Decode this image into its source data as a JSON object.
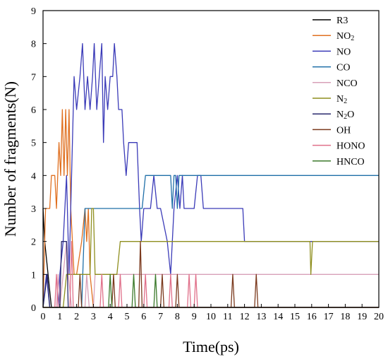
{
  "chart_data": {
    "type": "line",
    "title": "",
    "xlabel": "Time(ps)",
    "ylabel": "Number of fragments(N)",
    "xlim": [
      0,
      20
    ],
    "ylim": [
      0,
      9
    ],
    "x_ticks": [
      0,
      1,
      2,
      3,
      4,
      5,
      6,
      7,
      8,
      9,
      10,
      11,
      12,
      13,
      14,
      15,
      16,
      17,
      18,
      19,
      20
    ],
    "y_ticks": [
      0,
      1,
      2,
      3,
      4,
      5,
      6,
      7,
      8,
      9
    ],
    "grid": false,
    "legend_position": "top-right",
    "series": [
      {
        "name": "R3",
        "legend_parts": [
          {
            "t": "R3"
          }
        ],
        "color": "#000000",
        "points": [
          [
            0,
            3
          ],
          [
            0.1,
            2
          ],
          [
            0.3,
            1
          ],
          [
            0.5,
            0
          ],
          [
            20,
            0
          ]
        ]
      },
      {
        "name": "NO2",
        "legend_parts": [
          {
            "t": "NO"
          },
          {
            "t": "2",
            "sub": true
          }
        ],
        "color": "#e07020",
        "points": [
          [
            0,
            0
          ],
          [
            0.15,
            3
          ],
          [
            0.4,
            3
          ],
          [
            0.5,
            4
          ],
          [
            0.7,
            4
          ],
          [
            0.8,
            3
          ],
          [
            0.95,
            5
          ],
          [
            1.05,
            4
          ],
          [
            1.15,
            6
          ],
          [
            1.25,
            4
          ],
          [
            1.35,
            6
          ],
          [
            1.45,
            4
          ],
          [
            1.55,
            6
          ],
          [
            1.65,
            3
          ],
          [
            1.75,
            2
          ],
          [
            1.85,
            1
          ],
          [
            2.0,
            1
          ],
          [
            2.3,
            2
          ],
          [
            2.5,
            3
          ],
          [
            2.6,
            2
          ],
          [
            2.7,
            3
          ],
          [
            2.8,
            1
          ],
          [
            3.0,
            0
          ],
          [
            20,
            0
          ]
        ]
      },
      {
        "name": "NO",
        "legend_parts": [
          {
            "t": "NO"
          }
        ],
        "color": "#3b3bb8",
        "points": [
          [
            0,
            0
          ],
          [
            0.2,
            1
          ],
          [
            0.4,
            0
          ],
          [
            0.9,
            0
          ],
          [
            1.0,
            1
          ],
          [
            1.2,
            2
          ],
          [
            1.4,
            4
          ],
          [
            1.55,
            1
          ],
          [
            1.7,
            4
          ],
          [
            1.85,
            7
          ],
          [
            2.0,
            6
          ],
          [
            2.2,
            7
          ],
          [
            2.35,
            8
          ],
          [
            2.5,
            6
          ],
          [
            2.65,
            7
          ],
          [
            2.8,
            6
          ],
          [
            2.95,
            7
          ],
          [
            3.05,
            8
          ],
          [
            3.2,
            6
          ],
          [
            3.35,
            7
          ],
          [
            3.5,
            8
          ],
          [
            3.6,
            5
          ],
          [
            3.7,
            7
          ],
          [
            3.85,
            6
          ],
          [
            4.0,
            7
          ],
          [
            4.15,
            7
          ],
          [
            4.25,
            8
          ],
          [
            4.4,
            7
          ],
          [
            4.5,
            6
          ],
          [
            4.7,
            6
          ],
          [
            4.8,
            5
          ],
          [
            4.95,
            4
          ],
          [
            5.1,
            5
          ],
          [
            5.6,
            5
          ],
          [
            5.75,
            3
          ],
          [
            5.85,
            2
          ],
          [
            6.0,
            3
          ],
          [
            6.4,
            3
          ],
          [
            6.6,
            4
          ],
          [
            6.8,
            3
          ],
          [
            7.0,
            3
          ],
          [
            7.4,
            2
          ],
          [
            7.6,
            1
          ],
          [
            7.8,
            3
          ],
          [
            8.0,
            4
          ],
          [
            8.15,
            3
          ],
          [
            8.3,
            4
          ],
          [
            8.4,
            3
          ],
          [
            9.0,
            3
          ],
          [
            9.2,
            4
          ],
          [
            9.4,
            4
          ],
          [
            9.55,
            3
          ],
          [
            11.9,
            3
          ],
          [
            12.0,
            2
          ],
          [
            20,
            2
          ]
        ]
      },
      {
        "name": "CO",
        "legend_parts": [
          {
            "t": "CO"
          }
        ],
        "color": "#1f6fa8",
        "points": [
          [
            0,
            0
          ],
          [
            2.3,
            0
          ],
          [
            2.5,
            3
          ],
          [
            5.9,
            3
          ],
          [
            6.1,
            4
          ],
          [
            7.6,
            4
          ],
          [
            7.7,
            3
          ],
          [
            7.8,
            4
          ],
          [
            7.9,
            4
          ],
          [
            8.0,
            3
          ],
          [
            8.1,
            4
          ],
          [
            20,
            4
          ]
        ]
      },
      {
        "name": "NCO",
        "legend_parts": [
          {
            "t": "NCO"
          }
        ],
        "color": "#d8a0b8",
        "points": [
          [
            0,
            0
          ],
          [
            0.8,
            0
          ],
          [
            0.9,
            1
          ],
          [
            1.0,
            0
          ],
          [
            1.2,
            1
          ],
          [
            1.4,
            2
          ],
          [
            1.5,
            1
          ],
          [
            1.7,
            0
          ],
          [
            2.5,
            0
          ],
          [
            2.6,
            1
          ],
          [
            2.75,
            0
          ],
          [
            3.0,
            0
          ],
          [
            3.1,
            1
          ],
          [
            20,
            1
          ]
        ]
      },
      {
        "name": "N2",
        "legend_parts": [
          {
            "t": "N"
          },
          {
            "t": "2",
            "sub": true
          }
        ],
        "color": "#8f8f1f",
        "points": [
          [
            0,
            0
          ],
          [
            1.2,
            0
          ],
          [
            1.4,
            1
          ],
          [
            2.8,
            1
          ],
          [
            2.9,
            3
          ],
          [
            3.0,
            3
          ],
          [
            3.1,
            1
          ],
          [
            4.4,
            1
          ],
          [
            4.6,
            2
          ],
          [
            15.9,
            2
          ],
          [
            15.95,
            1
          ],
          [
            16.05,
            2
          ],
          [
            20,
            2
          ]
        ]
      },
      {
        "name": "N2O",
        "legend_parts": [
          {
            "t": "N"
          },
          {
            "t": "2",
            "sub": true
          },
          {
            "t": "O"
          }
        ],
        "color": "#2a2a6e",
        "points": [
          [
            0,
            0
          ],
          [
            0.25,
            1
          ],
          [
            0.4,
            0
          ],
          [
            1.0,
            0
          ],
          [
            1.1,
            2
          ],
          [
            1.4,
            2
          ],
          [
            1.5,
            0
          ],
          [
            20,
            0
          ]
        ]
      },
      {
        "name": "OH",
        "legend_parts": [
          {
            "t": "OH"
          }
        ],
        "color": "#7b3a1e",
        "points": [
          [
            0,
            0
          ],
          [
            2.1,
            0
          ],
          [
            2.2,
            1
          ],
          [
            2.3,
            0
          ],
          [
            4.1,
            0
          ],
          [
            4.2,
            1
          ],
          [
            4.3,
            0
          ],
          [
            5.7,
            0
          ],
          [
            5.8,
            2
          ],
          [
            5.9,
            0
          ],
          [
            7.0,
            0
          ],
          [
            7.1,
            1
          ],
          [
            7.2,
            0
          ],
          [
            7.9,
            0
          ],
          [
            8.0,
            1
          ],
          [
            8.1,
            0
          ],
          [
            11.2,
            0
          ],
          [
            11.3,
            1
          ],
          [
            11.4,
            0
          ],
          [
            12.6,
            0
          ],
          [
            12.7,
            1
          ],
          [
            12.8,
            0
          ],
          [
            20,
            0
          ]
        ]
      },
      {
        "name": "HONO",
        "legend_parts": [
          {
            "t": "HONO"
          }
        ],
        "color": "#e0708a",
        "points": [
          [
            0,
            0
          ],
          [
            0.7,
            0
          ],
          [
            0.8,
            1
          ],
          [
            0.9,
            0
          ],
          [
            1.6,
            0
          ],
          [
            1.7,
            2
          ],
          [
            1.8,
            0
          ],
          [
            3.4,
            0
          ],
          [
            3.5,
            1
          ],
          [
            3.6,
            0
          ],
          [
            4.5,
            0
          ],
          [
            4.6,
            1
          ],
          [
            4.7,
            0
          ],
          [
            6.0,
            0
          ],
          [
            6.1,
            1
          ],
          [
            6.2,
            0
          ],
          [
            7.5,
            0
          ],
          [
            7.6,
            1
          ],
          [
            7.7,
            0
          ],
          [
            8.6,
            0
          ],
          [
            8.7,
            1
          ],
          [
            8.8,
            0
          ],
          [
            9.0,
            0
          ],
          [
            9.1,
            1
          ],
          [
            9.2,
            0
          ],
          [
            20,
            0
          ]
        ]
      },
      {
        "name": "HNCO",
        "legend_parts": [
          {
            "t": "HNCO"
          }
        ],
        "color": "#3c7a2c",
        "points": [
          [
            0,
            0
          ],
          [
            3.9,
            0
          ],
          [
            4.0,
            1
          ],
          [
            4.1,
            0
          ],
          [
            5.3,
            0
          ],
          [
            5.4,
            1
          ],
          [
            5.5,
            0
          ],
          [
            6.6,
            0
          ],
          [
            6.7,
            1
          ],
          [
            6.8,
            0
          ],
          [
            20,
            0
          ]
        ]
      }
    ]
  }
}
